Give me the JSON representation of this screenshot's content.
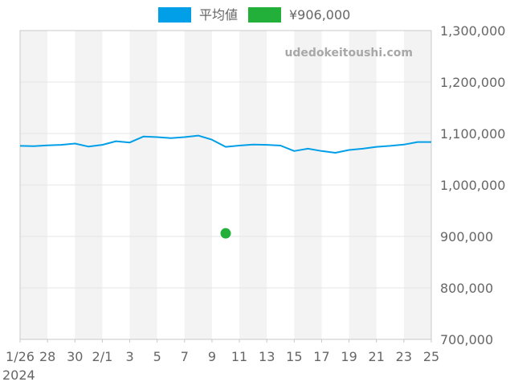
{
  "watermark": "udedokeitoushi.com",
  "chart_data": {
    "type": "line",
    "legend_position": "top",
    "grid": true,
    "xlabel": "",
    "ylabel": "",
    "ylim": [
      700000,
      1300000
    ],
    "y_ticks": [
      "1,300,000",
      "1,200,000",
      "1,100,000",
      "1,000,000",
      "900,000",
      "800,000",
      "700,000"
    ],
    "y_tick_values": [
      1300000,
      1200000,
      1100000,
      1000000,
      900000,
      800000,
      700000
    ],
    "x_start": "2024-01-26",
    "x_end": "2024-02-25",
    "x_ticks": [
      {
        "date": "2024-01-26",
        "label": "1/26"
      },
      {
        "date": "2024-01-28",
        "label": "28"
      },
      {
        "date": "2024-01-30",
        "label": "30"
      },
      {
        "date": "2024-02-01",
        "label": "2/1"
      },
      {
        "date": "2024-02-03",
        "label": "3"
      },
      {
        "date": "2024-02-05",
        "label": "5"
      },
      {
        "date": "2024-02-07",
        "label": "7"
      },
      {
        "date": "2024-02-09",
        "label": "9"
      },
      {
        "date": "2024-02-11",
        "label": "11"
      },
      {
        "date": "2024-02-13",
        "label": "13"
      },
      {
        "date": "2024-02-15",
        "label": "15"
      },
      {
        "date": "2024-02-17",
        "label": "17"
      },
      {
        "date": "2024-02-19",
        "label": "19"
      },
      {
        "date": "2024-02-21",
        "label": "21"
      },
      {
        "date": "2024-02-23",
        "label": "23"
      },
      {
        "date": "2024-02-25",
        "label": "25"
      }
    ],
    "year_label": "2024",
    "band_color": "#f3f3f3",
    "series": [
      {
        "name": "平均値",
        "color": "#009fe8",
        "kind": "line",
        "points": [
          [
            "2024-01-26",
            1076000
          ],
          [
            "2024-01-27",
            1075500
          ],
          [
            "2024-01-28",
            1077000
          ],
          [
            "2024-01-29",
            1078000
          ],
          [
            "2024-01-30",
            1080500
          ],
          [
            "2024-01-31",
            1074500
          ],
          [
            "2024-02-01",
            1078000
          ],
          [
            "2024-02-02",
            1085000
          ],
          [
            "2024-02-03",
            1082500
          ],
          [
            "2024-02-04",
            1094000
          ],
          [
            "2024-02-05",
            1093000
          ],
          [
            "2024-02-06",
            1091000
          ],
          [
            "2024-02-07",
            1093000
          ],
          [
            "2024-02-08",
            1096000
          ],
          [
            "2024-02-09",
            1088000
          ],
          [
            "2024-02-10",
            1074000
          ],
          [
            "2024-02-11",
            1076500
          ],
          [
            "2024-02-12",
            1078500
          ],
          [
            "2024-02-13",
            1078000
          ],
          [
            "2024-02-14",
            1076500
          ],
          [
            "2024-02-15",
            1066000
          ],
          [
            "2024-02-16",
            1070500
          ],
          [
            "2024-02-17",
            1066000
          ],
          [
            "2024-02-18",
            1062500
          ],
          [
            "2024-02-19",
            1068000
          ],
          [
            "2024-02-20",
            1070500
          ],
          [
            "2024-02-21",
            1074000
          ],
          [
            "2024-02-22",
            1076000
          ],
          [
            "2024-02-23",
            1078500
          ],
          [
            "2024-02-24",
            1083500
          ],
          [
            "2024-02-25",
            1083500
          ]
        ]
      },
      {
        "name": "¥906,000",
        "color": "#22b03a",
        "kind": "point",
        "points": [
          [
            "2024-02-10",
            906000
          ]
        ]
      }
    ]
  }
}
